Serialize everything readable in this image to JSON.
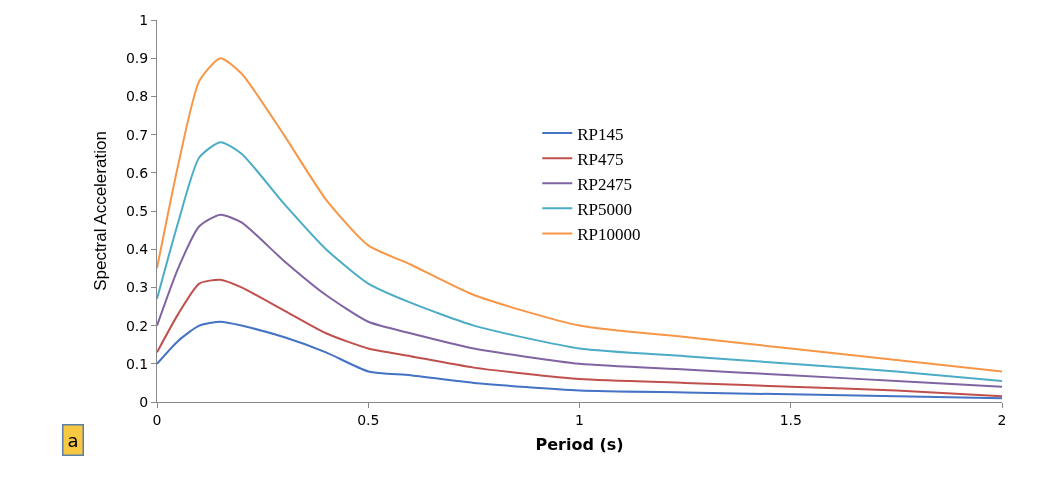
{
  "chart_data": {
    "type": "line",
    "xlabel": "Period (s)",
    "ylabel": "Spectral Acceleration",
    "annotations": [
      "a"
    ],
    "x": [
      0,
      0.05,
      0.1,
      0.15,
      0.2,
      0.3,
      0.4,
      0.5,
      0.6,
      0.75,
      1,
      1.25,
      1.5,
      1.75,
      2
    ],
    "series": [
      {
        "name": "RP145",
        "color": "#4472c4",
        "values": [
          0.1,
          0.16,
          0.2,
          0.21,
          0.2,
          0.17,
          0.13,
          0.08,
          0.07,
          0.05,
          0.03,
          0.025,
          0.02,
          0.015,
          0.01
        ]
      },
      {
        "name": "RP475",
        "color": "#c0504d",
        "values": [
          0.13,
          0.23,
          0.31,
          0.32,
          0.3,
          0.24,
          0.18,
          0.14,
          0.12,
          0.09,
          0.06,
          0.05,
          0.04,
          0.03,
          0.015
        ]
      },
      {
        "name": "RP2475",
        "color": "#8064a2",
        "values": [
          0.2,
          0.35,
          0.46,
          0.49,
          0.47,
          0.37,
          0.28,
          0.21,
          0.18,
          0.14,
          0.1,
          0.085,
          0.07,
          0.055,
          0.04
        ]
      },
      {
        "name": "RP5000",
        "color": "#4bacc6",
        "values": [
          0.27,
          0.47,
          0.64,
          0.68,
          0.65,
          0.52,
          0.4,
          0.31,
          0.26,
          0.2,
          0.14,
          0.12,
          0.1,
          0.08,
          0.055
        ]
      },
      {
        "name": "RP10000",
        "color": "#f79646",
        "values": [
          0.35,
          0.62,
          0.84,
          0.9,
          0.86,
          0.7,
          0.53,
          0.41,
          0.36,
          0.28,
          0.2,
          0.17,
          0.14,
          0.11,
          0.08
        ]
      }
    ],
    "xlim": [
      0,
      2
    ],
    "xticks": [
      0,
      0.5,
      1,
      1.5,
      2
    ],
    "ylim": [
      0,
      1
    ],
    "yticks": [
      0,
      0.1,
      0.2,
      0.3,
      0.4,
      0.5,
      0.6,
      0.7,
      0.8,
      0.9,
      1
    ],
    "grid": false,
    "legend": "top right",
    "marker": "none",
    "line_style": "solid"
  }
}
